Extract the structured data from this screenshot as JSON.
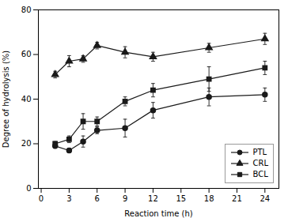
{
  "chart_data": {
    "type": "line",
    "x": [
      1.5,
      3,
      4.5,
      6,
      9,
      12,
      18,
      24
    ],
    "series": [
      {
        "name": "PTL",
        "color": "#1a1a1a",
        "marker": "circle",
        "line_style": "solid",
        "values": [
          19,
          17,
          21,
          26,
          27,
          35,
          41,
          42
        ],
        "errors": [
          1.0,
          1.0,
          2.5,
          1.5,
          4.0,
          3.5,
          4.0,
          3.0
        ]
      },
      {
        "name": "CRL",
        "color": "#1a1a1a",
        "marker": "triangle",
        "line_style": "solid",
        "values": [
          51,
          57,
          58,
          64,
          61,
          59,
          63,
          67
        ],
        "errors": [
          1.5,
          2.5,
          1.5,
          1.5,
          2.5,
          2.0,
          2.0,
          2.5
        ]
      },
      {
        "name": "BCL",
        "color": "#1a1a1a",
        "marker": "square",
        "line_style": "solid",
        "values": [
          20,
          22,
          30,
          30,
          39,
          44,
          49,
          54
        ],
        "errors": [
          1.0,
          1.5,
          3.5,
          2.0,
          2.0,
          3.0,
          5.5,
          3.0
        ]
      }
    ],
    "xlabel": "Reaction time (h)",
    "ylabel": "Degree of hydrolysis (%)",
    "xlim": [
      -0.3,
      25.5
    ],
    "ylim": [
      0,
      80
    ],
    "xticks": [
      0,
      3,
      6,
      9,
      12,
      15,
      18,
      21,
      24
    ],
    "yticks": [
      0,
      20,
      40,
      60,
      80
    ],
    "grid": false,
    "legend": "lower right"
  }
}
